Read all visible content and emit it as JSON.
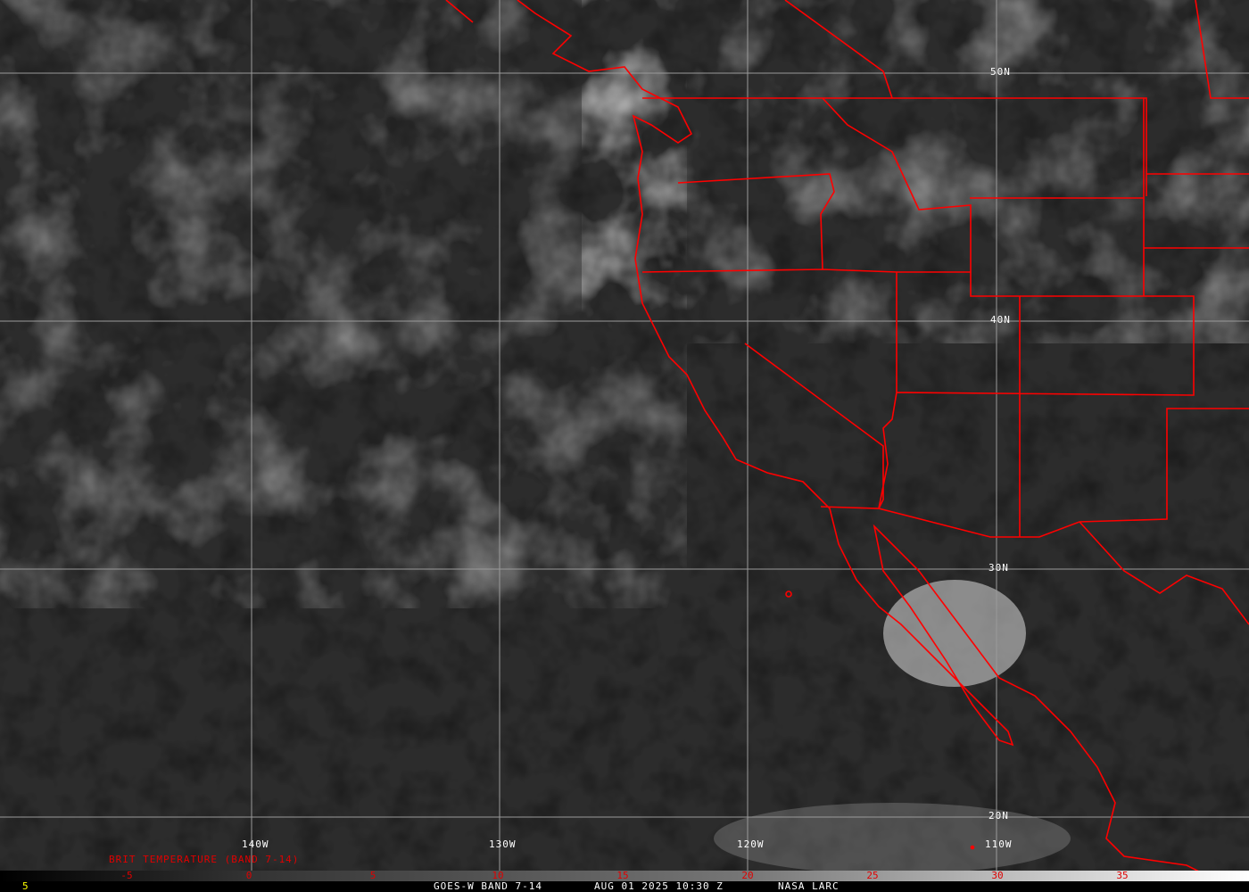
{
  "title": "GOES-W BAND 7-14",
  "datetime": "AUG 01 2025 10:30 Z",
  "source": "NASA LARC",
  "frame_number": "5",
  "colorbar": {
    "label": "BRIT TEMPERATURE (BAND 7-14)",
    "ticks": [
      "-5",
      "0",
      "5",
      "10",
      "15",
      "20",
      "25",
      "30",
      "35"
    ]
  },
  "grid": {
    "longitudes": [
      "140W",
      "130W",
      "120W",
      "110W"
    ],
    "latitudes": [
      "50N",
      "40N",
      "30N",
      "20N"
    ]
  },
  "colors": {
    "borders": "#ff0000",
    "grid": "#9a9a9a",
    "labels": "#ffffff",
    "frame_number": "#ffff00"
  }
}
